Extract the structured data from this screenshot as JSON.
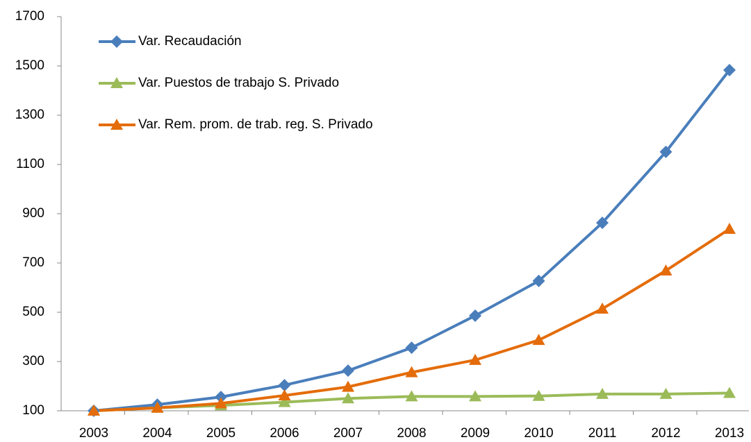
{
  "chart_data": {
    "type": "line",
    "categories": [
      "2003",
      "2004",
      "2005",
      "2006",
      "2007",
      "2008",
      "2009",
      "2010",
      "2011",
      "2012",
      "2013"
    ],
    "series": [
      {
        "name": "Var. Recaudación",
        "color": "#4a7ebb",
        "marker": "diamond",
        "values": [
          100,
          125,
          156,
          204,
          263,
          356,
          486,
          627,
          863,
          1151,
          1483
        ]
      },
      {
        "name": "Var. Puestos de trabajo S. Privado",
        "color": "#9bbb59",
        "marker": "triangle",
        "values": [
          100,
          112,
          122,
          135,
          150,
          158,
          158,
          160,
          168,
          168,
          172
        ]
      },
      {
        "name": "Var. Rem. prom. de trab. reg. S. Privado",
        "color": "#e46c0a",
        "marker": "triangle",
        "values": [
          100,
          112,
          130,
          162,
          197,
          256,
          306,
          387,
          514,
          669,
          838
        ]
      }
    ],
    "ylim": [
      100,
      1700
    ],
    "yticks": [
      100,
      300,
      500,
      700,
      900,
      1100,
      1300,
      1500,
      1700
    ],
    "legend": "upper left"
  }
}
